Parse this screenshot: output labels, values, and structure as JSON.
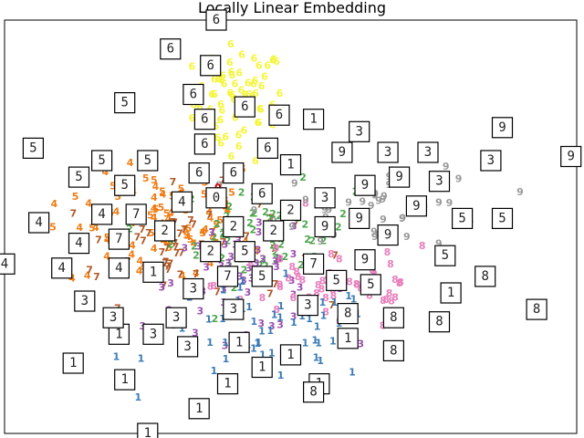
{
  "chart_data": {
    "type": "scatter",
    "title": "Locally Linear Embedding",
    "xlabel": "",
    "ylabel": "",
    "xlim": [
      0,
      100
    ],
    "ylim": [
      0,
      100
    ],
    "grid": false,
    "legend": "none",
    "series_colors": {
      "0": "#cc0000",
      "1": "#3a7bb5",
      "2": "#4ca64c",
      "3": "#9b4fb0",
      "4": "#f07c14",
      "5": "#f07c14",
      "6": "#f5f53a",
      "7": "#b05a28",
      "8": "#e87fbd",
      "9": "#999999"
    },
    "clusters": [
      {
        "digit": "6",
        "cx": 41,
        "cy": 80,
        "sx": 4,
        "sy": 7,
        "n": 70
      },
      {
        "digit": "4",
        "cx": 27,
        "cy": 48,
        "sx": 8,
        "sy": 7,
        "n": 55
      },
      {
        "digit": "5",
        "cx": 28,
        "cy": 55,
        "sx": 9,
        "sy": 6,
        "n": 40
      },
      {
        "digit": "7",
        "cx": 30,
        "cy": 45,
        "sx": 10,
        "sy": 7,
        "n": 60
      },
      {
        "digit": "2",
        "cx": 45,
        "cy": 48,
        "sx": 8,
        "sy": 6,
        "n": 55
      },
      {
        "digit": "3",
        "cx": 42,
        "cy": 37,
        "sx": 9,
        "sy": 6,
        "n": 55
      },
      {
        "digit": "8",
        "cx": 57,
        "cy": 36,
        "sx": 10,
        "sy": 6,
        "n": 55
      },
      {
        "digit": "1",
        "cx": 46,
        "cy": 24,
        "sx": 10,
        "sy": 6,
        "n": 55
      },
      {
        "digit": "9",
        "cx": 66,
        "cy": 55,
        "sx": 10,
        "sy": 5,
        "n": 45
      },
      {
        "digit": "0",
        "cx": 38,
        "cy": 58,
        "sx": 2,
        "sy": 2,
        "n": 4
      }
    ],
    "thumbnails": [
      {
        "digit": "6",
        "x": 37,
        "y": 100
      },
      {
        "digit": "6",
        "x": 29,
        "y": 93
      },
      {
        "digit": "6",
        "x": 36,
        "y": 89
      },
      {
        "digit": "6",
        "x": 33,
        "y": 82
      },
      {
        "digit": "6",
        "x": 42,
        "y": 79
      },
      {
        "digit": "6",
        "x": 48,
        "y": 77
      },
      {
        "digit": "6",
        "x": 35,
        "y": 76
      },
      {
        "digit": "6",
        "x": 35,
        "y": 70
      },
      {
        "digit": "6",
        "x": 46,
        "y": 69
      },
      {
        "digit": "6",
        "x": 40,
        "y": 63
      },
      {
        "digit": "6",
        "x": 34,
        "y": 63
      },
      {
        "digit": "6",
        "x": 45,
        "y": 58
      },
      {
        "digit": "5",
        "x": 21,
        "y": 80
      },
      {
        "digit": "5",
        "x": 5,
        "y": 69
      },
      {
        "digit": "5",
        "x": 17,
        "y": 66
      },
      {
        "digit": "5",
        "x": 25,
        "y": 66
      },
      {
        "digit": "5",
        "x": 13,
        "y": 62
      },
      {
        "digit": "5",
        "x": 21,
        "y": 60
      },
      {
        "digit": "5",
        "x": 80,
        "y": 52
      },
      {
        "digit": "5",
        "x": 87,
        "y": 52
      },
      {
        "digit": "5",
        "x": 42,
        "y": 44
      },
      {
        "digit": "5",
        "x": 45,
        "y": 38
      },
      {
        "digit": "5",
        "x": 58,
        "y": 37
      },
      {
        "digit": "5",
        "x": 64,
        "y": 36
      },
      {
        "digit": "5",
        "x": 77,
        "y": 43
      },
      {
        "digit": "4",
        "x": 6,
        "y": 51
      },
      {
        "digit": "4",
        "x": 0,
        "y": 41
      },
      {
        "digit": "4",
        "x": 10,
        "y": 40
      },
      {
        "digit": "4",
        "x": 13,
        "y": 46
      },
      {
        "digit": "4",
        "x": 17,
        "y": 53
      },
      {
        "digit": "4",
        "x": 20,
        "y": 40
      },
      {
        "digit": "4",
        "x": 31,
        "y": 56
      },
      {
        "digit": "7",
        "x": 23,
        "y": 53
      },
      {
        "digit": "7",
        "x": 20,
        "y": 47
      },
      {
        "digit": "7",
        "x": 39,
        "y": 38
      },
      {
        "digit": "7",
        "x": 54,
        "y": 41
      },
      {
        "digit": "2",
        "x": 28,
        "y": 49
      },
      {
        "digit": "2",
        "x": 36,
        "y": 44
      },
      {
        "digit": "2",
        "x": 40,
        "y": 50
      },
      {
        "digit": "2",
        "x": 47,
        "y": 49
      },
      {
        "digit": "2",
        "x": 50,
        "y": 54
      },
      {
        "digit": "0",
        "x": 37,
        "y": 57
      },
      {
        "digit": "1",
        "x": 54,
        "y": 76
      },
      {
        "digit": "1",
        "x": 50,
        "y": 65
      },
      {
        "digit": "1",
        "x": 26,
        "y": 39
      },
      {
        "digit": "1",
        "x": 20,
        "y": 24
      },
      {
        "digit": "1",
        "x": 12,
        "y": 17
      },
      {
        "digit": "1",
        "x": 21,
        "y": 13
      },
      {
        "digit": "1",
        "x": 41,
        "y": 22
      },
      {
        "digit": "1",
        "x": 50,
        "y": 19
      },
      {
        "digit": "1",
        "x": 45,
        "y": 16
      },
      {
        "digit": "1",
        "x": 39,
        "y": 12
      },
      {
        "digit": "1",
        "x": 34,
        "y": 6
      },
      {
        "digit": "1",
        "x": 25,
        "y": 0
      },
      {
        "digit": "1",
        "x": 55,
        "y": 12
      },
      {
        "digit": "1",
        "x": 60,
        "y": 23
      },
      {
        "digit": "1",
        "x": 78,
        "y": 34
      },
      {
        "digit": "3",
        "x": 62,
        "y": 73
      },
      {
        "digit": "3",
        "x": 67,
        "y": 68
      },
      {
        "digit": "3",
        "x": 74,
        "y": 68
      },
      {
        "digit": "3",
        "x": 76,
        "y": 61
      },
      {
        "digit": "3",
        "x": 56,
        "y": 57
      },
      {
        "digit": "3",
        "x": 14,
        "y": 32
      },
      {
        "digit": "3",
        "x": 19,
        "y": 28
      },
      {
        "digit": "3",
        "x": 30,
        "y": 28
      },
      {
        "digit": "3",
        "x": 33,
        "y": 35
      },
      {
        "digit": "3",
        "x": 26,
        "y": 24
      },
      {
        "digit": "3",
        "x": 32,
        "y": 21
      },
      {
        "digit": "3",
        "x": 40,
        "y": 30
      },
      {
        "digit": "3",
        "x": 53,
        "y": 31
      },
      {
        "digit": "3",
        "x": 85,
        "y": 66
      },
      {
        "digit": "9",
        "x": 59,
        "y": 68
      },
      {
        "digit": "9",
        "x": 63,
        "y": 60
      },
      {
        "digit": "9",
        "x": 69,
        "y": 62
      },
      {
        "digit": "9",
        "x": 72,
        "y": 55
      },
      {
        "digit": "9",
        "x": 56,
        "y": 50
      },
      {
        "digit": "9",
        "x": 62,
        "y": 52
      },
      {
        "digit": "9",
        "x": 67,
        "y": 48
      },
      {
        "digit": "9",
        "x": 63,
        "y": 42
      },
      {
        "digit": "9",
        "x": 87,
        "y": 74
      },
      {
        "digit": "9",
        "x": 99,
        "y": 67
      },
      {
        "digit": "8",
        "x": 60,
        "y": 29
      },
      {
        "digit": "8",
        "x": 68,
        "y": 28
      },
      {
        "digit": "8",
        "x": 76,
        "y": 27
      },
      {
        "digit": "8",
        "x": 68,
        "y": 20
      },
      {
        "digit": "8",
        "x": 84,
        "y": 38
      },
      {
        "digit": "8",
        "x": 93,
        "y": 30
      },
      {
        "digit": "8",
        "x": 54,
        "y": 10
      }
    ]
  }
}
